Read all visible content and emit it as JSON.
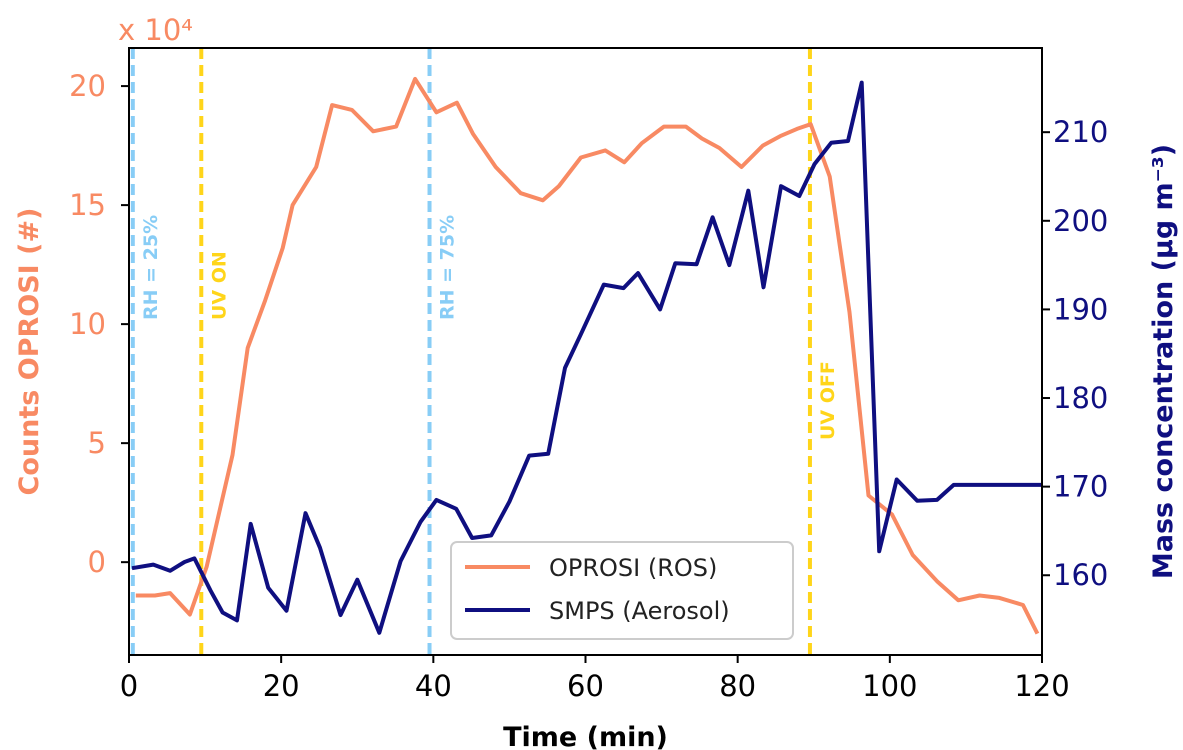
{
  "chart_data": {
    "type": "line",
    "xlabel": "Time (min)",
    "x_ticks": [
      0,
      20,
      40,
      60,
      80,
      100,
      120
    ],
    "xlim": [
      0,
      120
    ],
    "y_left": {
      "label": "Counts OPROSI (#)",
      "multiplier_label": "x 10⁴",
      "ticks": [
        0,
        5,
        10,
        15,
        20
      ],
      "ylim": [
        -3.9,
        21.6
      ],
      "color": "#f88a63"
    },
    "y_right": {
      "label": "Mass concentration (μg m⁻³)",
      "ticks": [
        160,
        170,
        180,
        190,
        200,
        210
      ],
      "ylim": [
        151.0,
        219.5
      ],
      "color": "#0f0f80"
    },
    "series": [
      {
        "name": "OPROSI (ROS)",
        "axis": "left",
        "color": "#f88a63",
        "x": [
          0.9,
          3.4,
          5.4,
          8.0,
          10.2,
          13.6,
          15.6,
          17.9,
          20.2,
          21.5,
          24.6,
          26.7,
          29.3,
          32.1,
          35.1,
          37.6,
          40.4,
          43.1,
          45.2,
          48.2,
          51.5,
          54.4,
          56.5,
          59.4,
          62.6,
          65.1,
          67.4,
          70.3,
          73.2,
          75.3,
          77.6,
          80.5,
          83.3,
          85.6,
          87.8,
          89.6,
          92.1,
          94.7,
          97.2,
          100.3,
          103.0,
          106.2,
          109.0,
          111.8,
          114.4,
          117.5,
          119.4
        ],
        "values": [
          -1.4,
          -1.4,
          -1.3,
          -2.2,
          -0.2,
          4.5,
          9.0,
          11.0,
          13.2,
          15.0,
          16.6,
          19.2,
          19.0,
          18.1,
          18.3,
          20.3,
          18.9,
          19.3,
          18.0,
          16.6,
          15.5,
          15.2,
          15.8,
          17.0,
          17.3,
          16.8,
          17.6,
          18.3,
          18.3,
          17.8,
          17.4,
          16.6,
          17.5,
          17.9,
          18.2,
          18.4,
          16.2,
          10.5,
          2.8,
          2.0,
          0.3,
          -0.8,
          -1.6,
          -1.4,
          -1.5,
          -1.8,
          -3.0
        ]
      },
      {
        "name": "SMPS (Aerosol)",
        "axis": "right",
        "color": "#0f0f80",
        "x": [
          0.4,
          3.2,
          5.4,
          7.3,
          8.6,
          10.7,
          12.3,
          14.2,
          16.0,
          18.3,
          20.7,
          23.2,
          25.1,
          27.8,
          30.0,
          32.9,
          35.7,
          38.3,
          40.4,
          43.0,
          45.1,
          47.6,
          50.0,
          52.6,
          55.1,
          57.3,
          59.4,
          62.4,
          65.0,
          66.9,
          69.8,
          71.8,
          74.6,
          76.7,
          78.9,
          81.4,
          83.4,
          85.7,
          88.1,
          90.1,
          92.3,
          94.5,
          96.3,
          98.6,
          100.9,
          103.6,
          106.2,
          108.4,
          109.3,
          112.4,
          114.6,
          117.1,
          120.0
        ],
        "values": [
          160.8,
          161.2,
          160.5,
          161.5,
          161.9,
          158.3,
          155.8,
          154.9,
          165.8,
          158.6,
          156.0,
          167.0,
          163.1,
          155.5,
          159.5,
          153.5,
          161.6,
          166.0,
          168.5,
          167.5,
          164.2,
          164.5,
          168.3,
          173.5,
          173.7,
          183.4,
          187.2,
          192.8,
          192.4,
          194.1,
          190.0,
          195.2,
          195.1,
          200.4,
          195.0,
          203.4,
          192.5,
          203.9,
          202.8,
          206.4,
          208.8,
          209.0,
          215.6,
          162.7,
          170.8,
          168.4,
          168.5,
          170.2,
          170.2,
          170.2,
          170.2,
          170.2,
          170.2
        ]
      }
    ],
    "vertical_markers": [
      {
        "x": 0.5,
        "label": "RH = 25%",
        "color": "#88cdf6"
      },
      {
        "x": 9.5,
        "label": "UV ON",
        "color": "#ffd51a"
      },
      {
        "x": 39.5,
        "label": "RH = 75%",
        "color": "#88cdf6"
      },
      {
        "x": 89.5,
        "label": "UV OFF",
        "color": "#ffd51a"
      }
    ],
    "legend": {
      "placement": "bottom-center"
    },
    "grid": false
  }
}
